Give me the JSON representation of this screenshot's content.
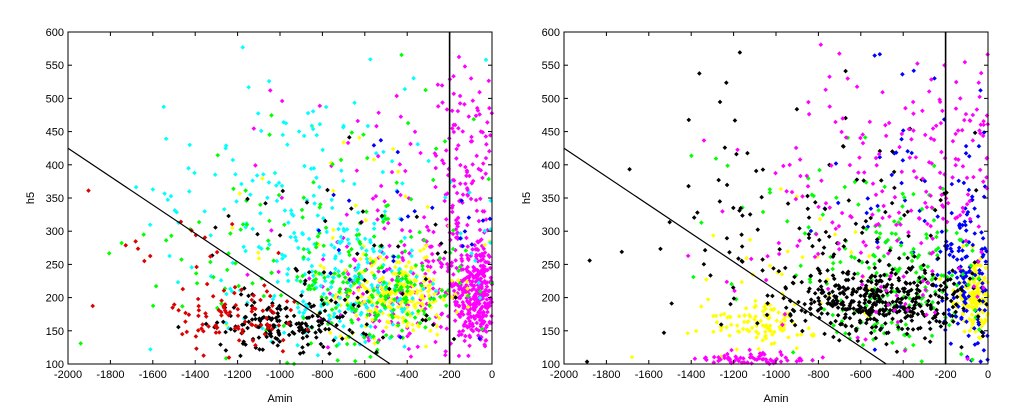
{
  "chart_data": [
    {
      "type": "scatter",
      "xlabel": "Amin",
      "ylabel": "h5",
      "xlim": [
        -2000,
        0
      ],
      "ylim": [
        100,
        600
      ],
      "xticks": [
        -2000,
        -1800,
        -1600,
        -1400,
        -1200,
        -1000,
        -800,
        -600,
        -400,
        -200,
        0
      ],
      "yticks": [
        100,
        150,
        200,
        250,
        300,
        350,
        400,
        450,
        500,
        550,
        600
      ],
      "grid": false,
      "annotations": {
        "vertical_line_x": -200,
        "diagonal_line": [
          [
            -2000,
            425
          ],
          [
            -480,
            100
          ]
        ]
      },
      "series": [
        {
          "color": "#ff00ff",
          "clusters": [
            {
              "count": 320,
              "cx": -70,
              "sx": 55,
              "cy": 205,
              "sy": 40
            },
            {
              "count": 180,
              "cx": -120,
              "cy": 330,
              "sx": 90,
              "sy": 110
            },
            {
              "count": 130,
              "cx": -420,
              "cy": 210,
              "sx": 170,
              "sy": 45
            },
            {
              "count": 70,
              "cx": -500,
              "cy": 330,
              "sx": 260,
              "sy": 110
            }
          ]
        },
        {
          "color": "#ffff00",
          "clusters": [
            {
              "count": 230,
              "cx": -450,
              "cy": 205,
              "sx": 150,
              "sy": 30
            },
            {
              "count": 40,
              "cx": -700,
              "cy": 300,
              "sx": 300,
              "sy": 90
            }
          ]
        },
        {
          "color": "#00ffff",
          "clusters": [
            {
              "count": 150,
              "cx": -700,
              "cy": 220,
              "sx": 200,
              "sy": 50
            },
            {
              "count": 120,
              "cx": -1000,
              "cy": 360,
              "sx": 300,
              "sy": 100
            },
            {
              "count": 50,
              "cx": -300,
              "cy": 300,
              "sx": 250,
              "sy": 100
            }
          ]
        },
        {
          "color": "#00ff00",
          "clusters": [
            {
              "count": 180,
              "cx": -550,
              "cy": 210,
              "sx": 220,
              "sy": 45
            },
            {
              "count": 50,
              "cx": -1200,
              "cy": 260,
              "sx": 250,
              "sy": 70
            },
            {
              "count": 40,
              "cx": -600,
              "cy": 350,
              "sx": 300,
              "sy": 90
            }
          ]
        },
        {
          "color": "#0000ff",
          "clusters": [
            {
              "count": 30,
              "cx": -300,
              "cy": 280,
              "sx": 300,
              "sy": 100
            }
          ]
        },
        {
          "color": "#000000",
          "clusters": [
            {
              "count": 150,
              "cx": -1000,
              "cy": 160,
              "sx": 160,
              "sy": 18
            },
            {
              "count": 60,
              "cx": -700,
              "cy": 240,
              "sx": 300,
              "sy": 70
            }
          ]
        },
        {
          "color": "#dd0000",
          "clusters": [
            {
              "count": 90,
              "cx": -1200,
              "cy": 170,
              "sx": 150,
              "sy": 30
            },
            {
              "count": 20,
              "cx": -1500,
              "cy": 250,
              "sx": 200,
              "sy": 60
            }
          ]
        }
      ]
    },
    {
      "type": "scatter",
      "xlabel": "Amin",
      "ylabel": "h5",
      "xlim": [
        -2000,
        0
      ],
      "ylim": [
        100,
        600
      ],
      "xticks": [
        -2000,
        -1800,
        -1600,
        -1400,
        -1200,
        -1000,
        -800,
        -600,
        -400,
        -200,
        0
      ],
      "yticks": [
        100,
        150,
        200,
        250,
        300,
        350,
        400,
        450,
        500,
        550,
        600
      ],
      "grid": false,
      "annotations": {
        "vertical_line_x": -200,
        "diagonal_line": [
          [
            -2000,
            425
          ],
          [
            -480,
            100
          ]
        ]
      },
      "series": [
        {
          "color": "#ffff00",
          "clusters": [
            {
              "count": 180,
              "cx": -60,
              "cy": 200,
              "sx": 45,
              "sy": 25
            },
            {
              "count": 100,
              "cx": -1080,
              "cy": 160,
              "sx": 130,
              "sy": 15
            },
            {
              "count": 40,
              "cx": -1000,
              "cy": 220,
              "sx": 300,
              "sy": 70
            }
          ]
        },
        {
          "color": "#0000ff",
          "clusters": [
            {
              "count": 150,
              "cx": -80,
              "cy": 230,
              "sx": 70,
              "sy": 80
            },
            {
              "count": 60,
              "cx": -300,
              "cy": 330,
              "sx": 200,
              "sy": 120
            }
          ]
        },
        {
          "color": "#00ff00",
          "clusters": [
            {
              "count": 180,
              "cx": -400,
              "cy": 230,
              "sx": 200,
              "sy": 60
            },
            {
              "count": 40,
              "cx": -800,
              "cy": 300,
              "sx": 300,
              "sy": 90
            }
          ]
        },
        {
          "color": "#000000",
          "clusters": [
            {
              "count": 380,
              "cx": -520,
              "cy": 195,
              "sx": 220,
              "sy": 25
            },
            {
              "count": 120,
              "cx": -700,
              "cy": 260,
              "sx": 350,
              "sy": 70
            },
            {
              "count": 40,
              "cx": -1100,
              "cy": 400,
              "sx": 400,
              "sy": 100
            }
          ]
        },
        {
          "color": "#ff00ff",
          "clusters": [
            {
              "count": 200,
              "cx": -500,
              "cy": 340,
              "sx": 350,
              "sy": 110
            },
            {
              "count": 70,
              "cx": -1100,
              "cy": 108,
              "sx": 130,
              "sy": 6
            },
            {
              "count": 70,
              "cx": -100,
              "cy": 450,
              "sx": 120,
              "sy": 100
            }
          ]
        }
      ]
    }
  ]
}
